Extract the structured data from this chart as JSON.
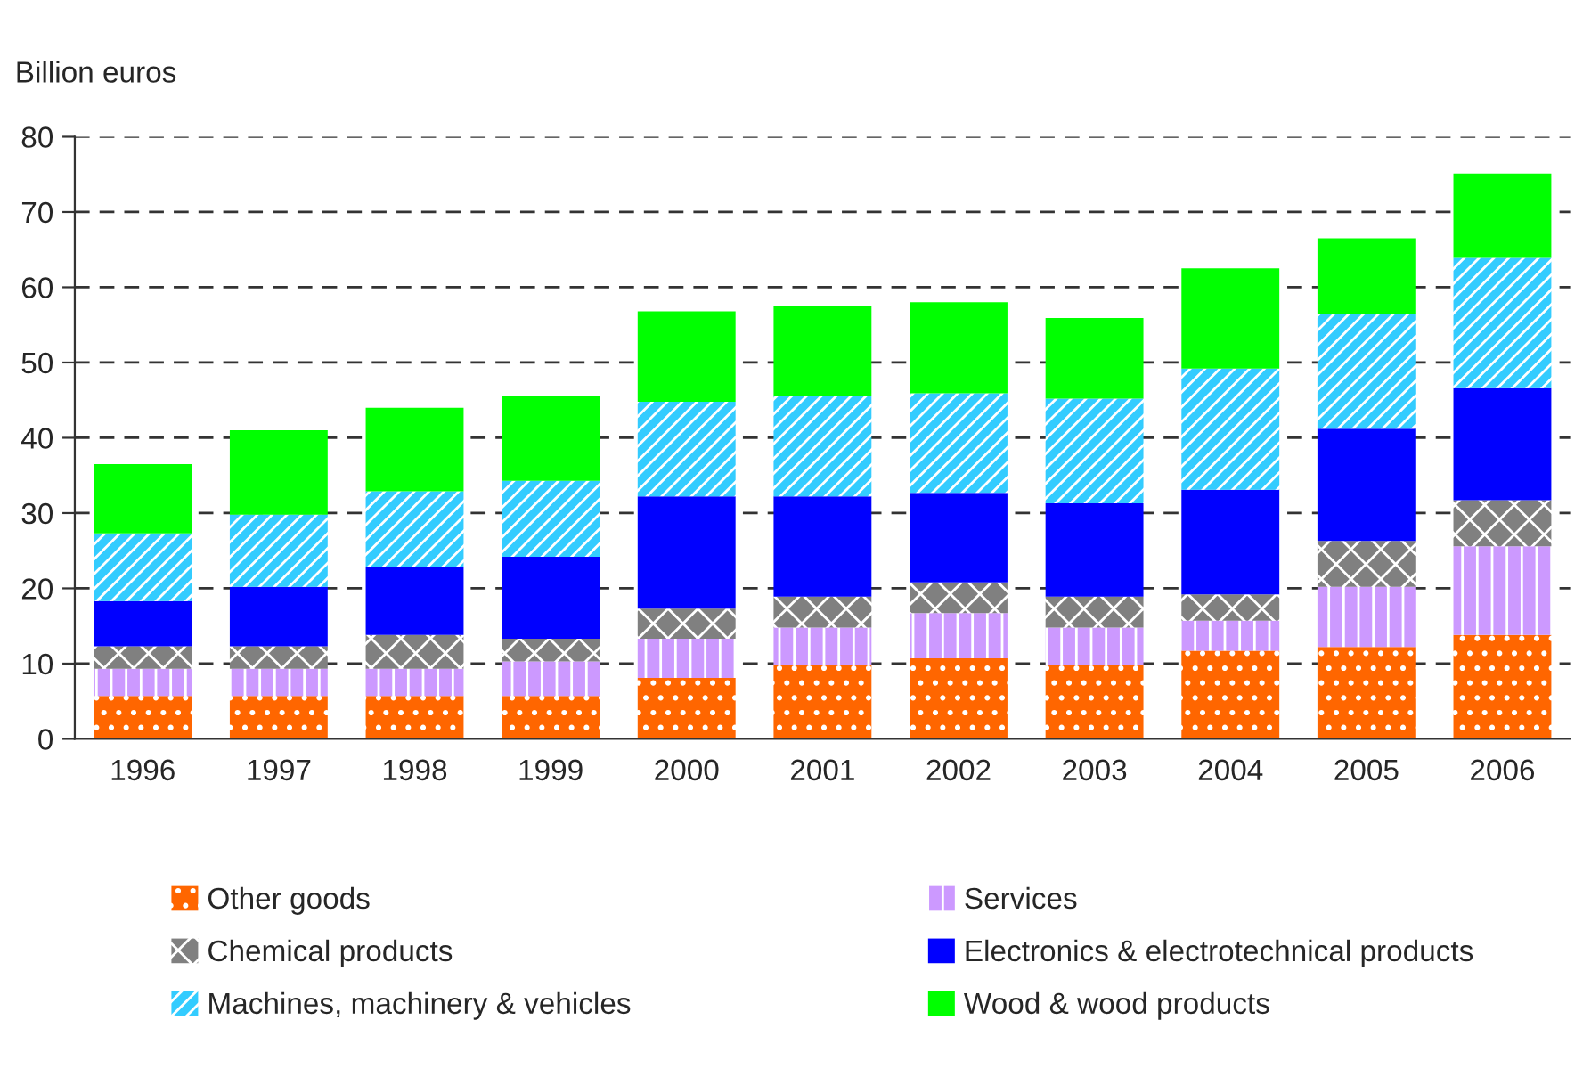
{
  "chart_data": {
    "type": "bar",
    "stacked": true,
    "ylabel": "Billion euros",
    "categories": [
      "1996",
      "1997",
      "1998",
      "1999",
      "2000",
      "2001",
      "2002",
      "2003",
      "2004",
      "2005",
      "2006"
    ],
    "series": [
      {
        "name": "Other goods",
        "color": "#ff6600",
        "values": [
          5.7,
          5.7,
          5.7,
          5.7,
          8.1,
          9.8,
          10.7,
          9.8,
          11.7,
          12.2,
          13.8
        ]
      },
      {
        "name": "Services",
        "color": "#cc99ff",
        "values": [
          3.6,
          3.6,
          3.6,
          4.6,
          5.2,
          5.0,
          6.0,
          5.0,
          4.0,
          8.0,
          11.8
        ]
      },
      {
        "name": "Chemical products",
        "color": "#808080",
        "values": [
          3.0,
          3.0,
          4.5,
          3.0,
          4.0,
          4.1,
          4.1,
          4.1,
          3.5,
          6.1,
          6.1
        ]
      },
      {
        "name": "Electronics & electrotechnical products",
        "color": "#0000ff",
        "values": [
          6.0,
          7.9,
          9.0,
          10.9,
          14.9,
          13.3,
          11.9,
          12.4,
          13.9,
          14.9,
          14.9
        ]
      },
      {
        "name": "Machines, machinery & vehicles",
        "color": "#33ccff",
        "values": [
          9.0,
          9.6,
          10.1,
          10.1,
          12.6,
          13.3,
          13.2,
          13.9,
          16.1,
          15.2,
          17.3
        ]
      },
      {
        "name": "Wood & wood products",
        "color": "#00ff00",
        "values": [
          9.2,
          11.2,
          11.1,
          11.2,
          12.0,
          12.0,
          12.1,
          10.7,
          13.3,
          10.1,
          11.2
        ]
      }
    ],
    "ylim": [
      0,
      80
    ],
    "yticks": [
      0,
      10,
      20,
      30,
      40,
      50,
      60,
      70,
      80
    ],
    "grid": "y",
    "legend": "bottom"
  }
}
